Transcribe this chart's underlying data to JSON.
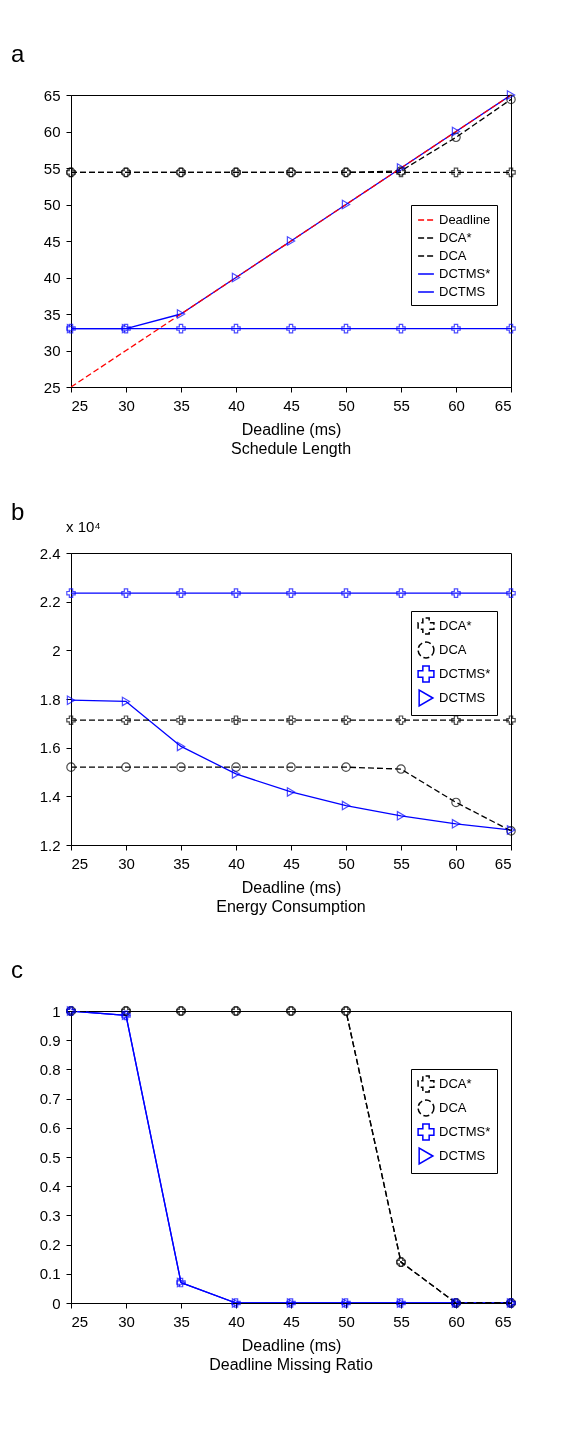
{
  "chart_data": [
    {
      "type": "line",
      "title": "Schedule Length",
      "xlabel": "Deadline (ms)",
      "annotations": [
        "a"
      ],
      "x": [
        25,
        30,
        35,
        40,
        45,
        50,
        55,
        60,
        65
      ],
      "series": [
        {
          "name": "Deadline",
          "color": "#ff0000",
          "line_style": "dashed",
          "marker": "none",
          "values": [
            25,
            30,
            35,
            40,
            45,
            50,
            55,
            60,
            65
          ]
        },
        {
          "name": "DCA*",
          "color": "#000000",
          "line_style": "dashed",
          "marker": "cross",
          "values": [
            54.4,
            54.4,
            54.4,
            54.4,
            54.4,
            54.4,
            54.4,
            54.4,
            54.4
          ]
        },
        {
          "name": "DCA",
          "color": "#000000",
          "line_style": "dashed",
          "marker": "circle",
          "values": [
            54.4,
            54.4,
            54.4,
            54.4,
            54.4,
            54.4,
            54.6,
            59.2,
            64.4
          ]
        },
        {
          "name": "DCTMS*",
          "color": "#0000ff",
          "line_style": "solid",
          "marker": "cross",
          "values": [
            33,
            33,
            33,
            33,
            33,
            33,
            33,
            33,
            33
          ]
        },
        {
          "name": "DCTMS",
          "color": "#0000ff",
          "line_style": "solid",
          "marker": "triangle",
          "values": [
            33,
            33,
            35,
            40,
            45,
            50,
            55,
            60,
            65
          ]
        }
      ],
      "xlim": [
        25,
        65
      ],
      "xticks": [
        25,
        30,
        35,
        40,
        45,
        50,
        55,
        60,
        65
      ],
      "ylim": [
        25,
        65
      ],
      "yticks": [
        25,
        30,
        35,
        40,
        45,
        50,
        55,
        60,
        65
      ],
      "grid": false,
      "legend": "right"
    },
    {
      "type": "line",
      "title": "Energy Consumption",
      "xlabel": "Deadline (ms)",
      "annotations": [
        "b",
        "x 10⁴"
      ],
      "x": [
        25,
        30,
        35,
        40,
        45,
        50,
        55,
        60,
        65
      ],
      "series": [
        {
          "name": "DCA*",
          "color": "#000000",
          "line_style": "dashed",
          "marker": "cross",
          "values": [
            1.713,
            1.713,
            1.713,
            1.713,
            1.713,
            1.713,
            1.713,
            1.713,
            1.713
          ]
        },
        {
          "name": "DCA",
          "color": "#000000",
          "line_style": "dashed",
          "marker": "circle",
          "values": [
            1.52,
            1.52,
            1.52,
            1.52,
            1.52,
            1.52,
            1.512,
            1.375,
            1.258
          ]
        },
        {
          "name": "DCTMS*",
          "color": "#0000ff",
          "line_style": "solid",
          "marker": "cross",
          "values": [
            2.235,
            2.235,
            2.235,
            2.235,
            2.235,
            2.235,
            2.235,
            2.235,
            2.235
          ]
        },
        {
          "name": "DCTMS",
          "color": "#0000ff",
          "line_style": "solid",
          "marker": "triangle",
          "values": [
            1.795,
            1.79,
            1.605,
            1.492,
            1.418,
            1.362,
            1.32,
            1.287,
            1.262
          ]
        }
      ],
      "xlim": [
        25,
        65
      ],
      "xticks": [
        25,
        30,
        35,
        40,
        45,
        50,
        55,
        60,
        65
      ],
      "ylim": [
        1.2,
        2.4
      ],
      "yticks": [
        1.2,
        1.4,
        1.6,
        1.8,
        2,
        2.2,
        2.4
      ],
      "grid": false,
      "legend": "top right"
    },
    {
      "type": "line",
      "title": "Deadline Missing Ratio",
      "xlabel": "Deadline (ms)",
      "annotations": [
        "c"
      ],
      "x": [
        25,
        30,
        35,
        40,
        45,
        50,
        55,
        60,
        65
      ],
      "series": [
        {
          "name": "DCA*",
          "color": "#000000",
          "line_style": "dashed",
          "marker": "cross",
          "values": [
            1,
            1,
            1,
            1,
            1,
            1,
            0.14,
            0,
            0
          ]
        },
        {
          "name": "DCA",
          "color": "#000000",
          "line_style": "dashed",
          "marker": "circle",
          "values": [
            1,
            1,
            1,
            1,
            1,
            1,
            0.14,
            0,
            0
          ]
        },
        {
          "name": "DCTMS*",
          "color": "#0000ff",
          "line_style": "solid",
          "marker": "cross",
          "values": [
            1,
            0.985,
            0.07,
            0,
            0,
            0,
            0,
            0,
            0
          ]
        },
        {
          "name": "DCTMS",
          "color": "#0000ff",
          "line_style": "solid",
          "marker": "triangle",
          "values": [
            1,
            0.985,
            0.07,
            0,
            0,
            0,
            0,
            0,
            0
          ]
        }
      ],
      "xlim": [
        25,
        65
      ],
      "xticks": [
        25,
        30,
        35,
        40,
        45,
        50,
        55,
        60,
        65
      ],
      "ylim": [
        0,
        1
      ],
      "yticks": [
        0,
        0.1,
        0.2,
        0.3,
        0.4,
        0.5,
        0.6,
        0.7,
        0.8,
        0.9,
        1
      ],
      "grid": false,
      "legend": "top right"
    }
  ]
}
